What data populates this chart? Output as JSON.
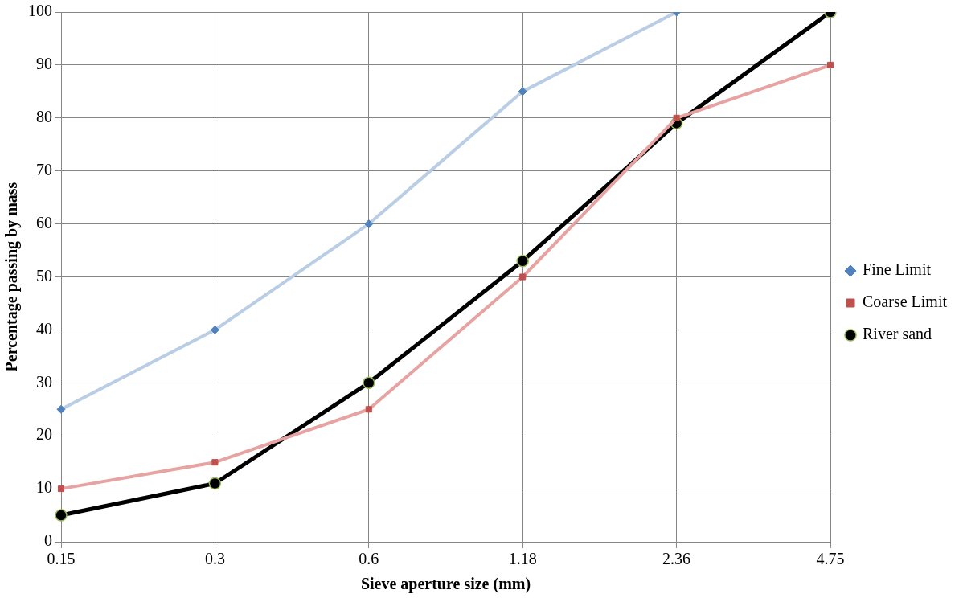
{
  "chart_data": {
    "type": "line",
    "xlabel": "Sieve aperture size (mm)",
    "ylabel": "Percentage passing by mass",
    "categories": [
      "0.15",
      "0.3",
      "0.6",
      "1.18",
      "2.36",
      "4.75"
    ],
    "series": [
      {
        "name": "Fine Limit",
        "color": "#b9cde5",
        "marker": "diamond",
        "values": [
          25,
          40,
          60,
          85,
          100,
          null
        ]
      },
      {
        "name": "Coarse Limit",
        "color": "#e6a3a2",
        "marker": "square",
        "values": [
          10,
          15,
          25,
          50,
          80,
          90
        ]
      },
      {
        "name": "River sand",
        "color": "#000000",
        "marker": "circle",
        "values": [
          5,
          11,
          30,
          53,
          79,
          100
        ]
      }
    ],
    "ylim": [
      0,
      100
    ],
    "yticks": [
      0,
      10,
      20,
      30,
      40,
      50,
      60,
      70,
      80,
      90,
      100
    ],
    "grid": true,
    "legend": "right",
    "line_style": "solid"
  }
}
